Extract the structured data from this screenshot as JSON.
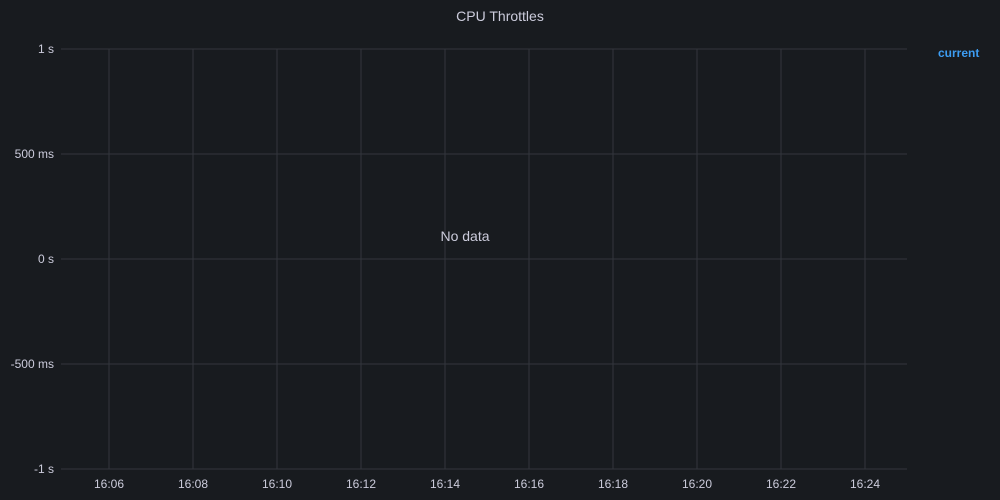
{
  "panel": {
    "title": "CPU Throttles",
    "no_data_text": "No data"
  },
  "legend": {
    "items": [
      {
        "name": "current",
        "color": "#3d9df2"
      }
    ]
  },
  "colors": {
    "background": "#181b1f",
    "grid": "#33363c",
    "axis_text": "#ccccdc",
    "series": "#3d9df2"
  },
  "chart_data": {
    "type": "line",
    "title": "CPU Throttles",
    "xlabel": "",
    "ylabel": "",
    "x_ticks": [
      "16:06",
      "16:08",
      "16:10",
      "16:12",
      "16:14",
      "16:16",
      "16:18",
      "16:20",
      "16:22",
      "16:24"
    ],
    "y_ticks": [
      {
        "value": 1,
        "label": "1 s"
      },
      {
        "value": 0.5,
        "label": "500 ms"
      },
      {
        "value": 0,
        "label": "0 s"
      },
      {
        "value": -0.5,
        "label": "-500 ms"
      },
      {
        "value": -1,
        "label": "-1 s"
      }
    ],
    "ylim": [
      -1,
      1
    ],
    "grid": true,
    "legend_position": "right",
    "series": [
      {
        "name": "current",
        "values": []
      }
    ]
  }
}
